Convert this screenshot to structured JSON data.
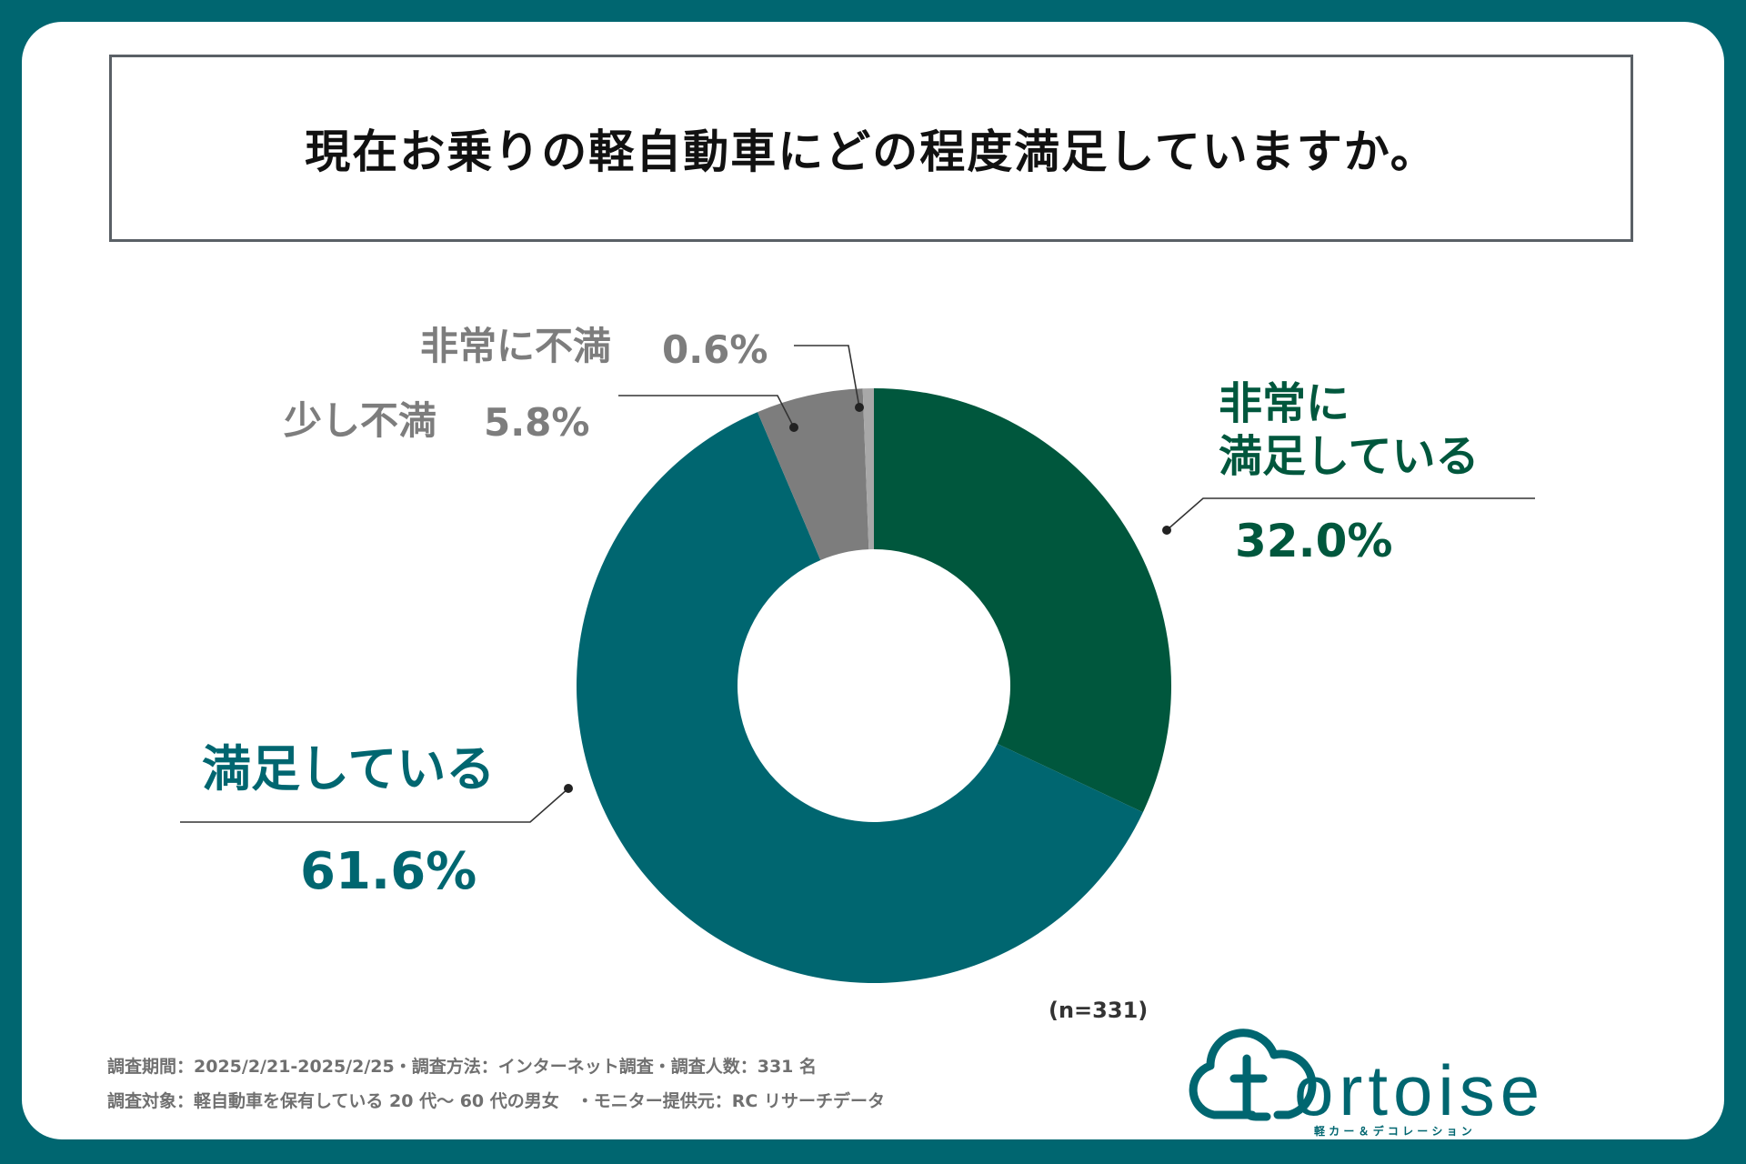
{
  "chart_data": {
    "type": "pie",
    "variant": "donut",
    "title": "現在お乗りの軽自動車にどの程度満足していますか。",
    "categories": [
      "非常に満足している",
      "満足している",
      "少し不満",
      "非常に不満"
    ],
    "values": [
      32.0,
      61.6,
      5.8,
      0.6
    ],
    "value_labels": [
      "32.0%",
      "61.6%",
      "5.8%",
      "0.6%"
    ],
    "colors": [
      "#00573d",
      "#006670",
      "#7d7d7d",
      "#a8a8a8"
    ],
    "n_label": "(n=331)"
  },
  "labels": {
    "very_satisfied_line1": "非常に",
    "very_satisfied_line2": "満足している",
    "satisfied": "満足している",
    "slightly_dissatisfied": "少し不満",
    "very_dissatisfied": "非常に不満"
  },
  "footer": {
    "line1": "調査期間：2025/2/21-2025/2/25・調査方法：インターネット調査・調査人数：331 名",
    "line2": "調査対象：軽自動車を保有している 20 代～ 60 代の男女　・モニター提供元：RC リサーチデータ"
  },
  "logo": {
    "name": "tortoise",
    "tagline": "軽 カ ー ＆ デ コ レ ー シ ョ ン"
  }
}
